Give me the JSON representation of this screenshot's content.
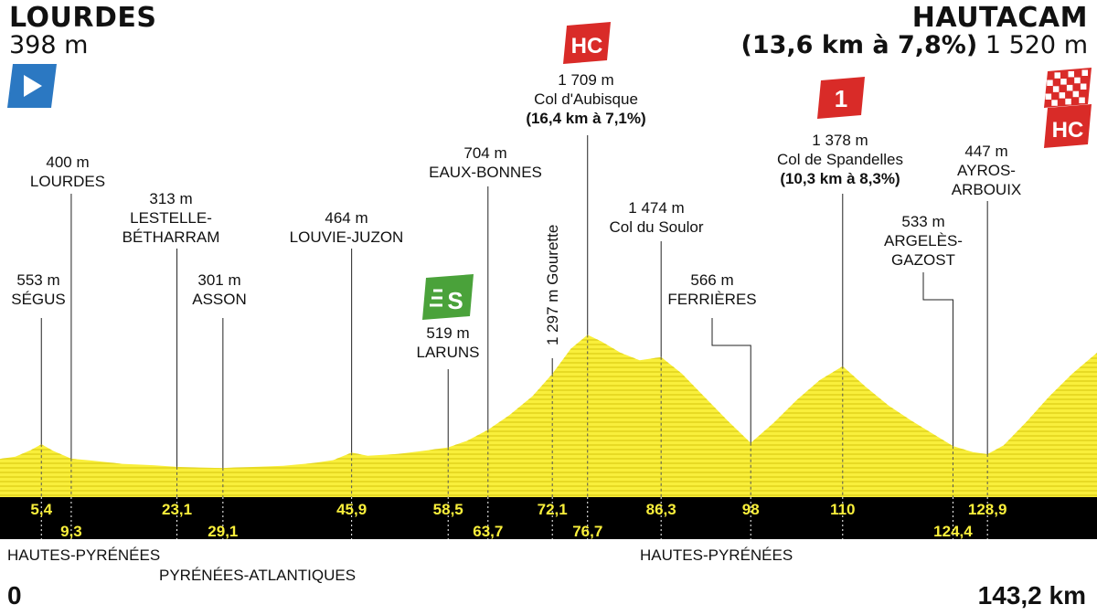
{
  "header": {
    "start_city": "LOURDES",
    "start_alt": "398 m",
    "finish_city": "HAUTACAM",
    "finish_climb": "(13,6 km à 7,8%)",
    "finish_alt": "1 520 m"
  },
  "footer": {
    "start_km": "0",
    "end_km": "143,2 km",
    "departments": [
      "HAUTES-PYRÉNÉES",
      "PYRÉNÉES-ATLANTIQUES",
      "HAUTES-PYRÉNÉES"
    ]
  },
  "colors": {
    "profile_fill": "#f9ef3b",
    "profile_lines": "#c9b800",
    "distance_band": "#000000",
    "hc_badge": "#d92b28",
    "cat1_badge": "#d92b28",
    "sprint_badge": "#4aa23a",
    "start_flag": "#2b78c2"
  },
  "badges": {
    "aubisque": "HC",
    "spandelles": "1",
    "sprint": "S",
    "finish": "HC"
  },
  "chart_data": {
    "type": "area",
    "xlabel": "",
    "ylabel": "",
    "xlim": [
      0,
      143.2
    ],
    "ylim": [
      0,
      1800
    ],
    "profile": [
      [
        0,
        398
      ],
      [
        2,
        420
      ],
      [
        4,
        490
      ],
      [
        5.4,
        553
      ],
      [
        7,
        480
      ],
      [
        9.3,
        400
      ],
      [
        12,
        380
      ],
      [
        16,
        345
      ],
      [
        20,
        330
      ],
      [
        23.1,
        313
      ],
      [
        26,
        305
      ],
      [
        29.1,
        301
      ],
      [
        33,
        312
      ],
      [
        37,
        325
      ],
      [
        41,
        355
      ],
      [
        43.5,
        385
      ],
      [
        45.9,
        464
      ],
      [
        48,
        430
      ],
      [
        52,
        450
      ],
      [
        55,
        480
      ],
      [
        58.5,
        519
      ],
      [
        61,
        590
      ],
      [
        63.7,
        704
      ],
      [
        66.5,
        860
      ],
      [
        69.5,
        1060
      ],
      [
        72.1,
        1297
      ],
      [
        74.5,
        1560
      ],
      [
        76.7,
        1709
      ],
      [
        78.5,
        1640
      ],
      [
        81,
        1520
      ],
      [
        83.5,
        1440
      ],
      [
        86.3,
        1474
      ],
      [
        89,
        1300
      ],
      [
        92,
        1050
      ],
      [
        95,
        800
      ],
      [
        98,
        566
      ],
      [
        101,
        780
      ],
      [
        104,
        1020
      ],
      [
        107,
        1230
      ],
      [
        110,
        1378
      ],
      [
        113,
        1160
      ],
      [
        116,
        960
      ],
      [
        119,
        800
      ],
      [
        121,
        700
      ],
      [
        124.4,
        533
      ],
      [
        127,
        470
      ],
      [
        128.9,
        447
      ],
      [
        131,
        540
      ],
      [
        134,
        790
      ],
      [
        137,
        1060
      ],
      [
        140,
        1300
      ],
      [
        143.2,
        1520
      ]
    ],
    "waypoints": [
      {
        "km": 5.4,
        "km_label": "5,4",
        "alt": "553 m",
        "name": "SÉGUS"
      },
      {
        "km": 9.3,
        "km_label": "9,3",
        "alt": "400 m",
        "name": "LOURDES"
      },
      {
        "km": 23.1,
        "km_label": "23,1",
        "alt": "313 m",
        "name": "LESTELLE-",
        "name2": "BÉTHARRAM"
      },
      {
        "km": 29.1,
        "km_label": "29,1",
        "alt": "301 m",
        "name": "ASSON"
      },
      {
        "km": 45.9,
        "km_label": "45,9",
        "alt": "464 m",
        "name": "LOUVIE-JUZON"
      },
      {
        "km": 58.5,
        "km_label": "58,5",
        "alt": "519 m",
        "name": "LARUNS"
      },
      {
        "km": 63.7,
        "km_label": "63,7",
        "alt": "704 m",
        "name": "EAUX-BONNES"
      },
      {
        "km": 72.1,
        "km_label": "72,1",
        "alt": "1 297 m",
        "name": "Gourette"
      },
      {
        "km": 76.7,
        "km_label": "76,7",
        "alt": "1 709 m",
        "name": "Col d'Aubisque",
        "climb": "(16,4 km à 7,1%)"
      },
      {
        "km": 86.3,
        "km_label": "86,3",
        "alt": "1 474 m",
        "name": "Col du Soulor"
      },
      {
        "km": 98,
        "km_label": "98",
        "alt": "566 m",
        "name": "FERRIÈRES"
      },
      {
        "km": 110,
        "km_label": "110",
        "alt": "1 378 m",
        "name": "Col de Spandelles",
        "climb": "(10,3 km à 8,3%)"
      },
      {
        "km": 124.4,
        "km_label": "124,4",
        "alt": "533 m",
        "name": "ARGELÈS-",
        "name2": "GAZOST"
      },
      {
        "km": 128.9,
        "km_label": "128,9",
        "alt": "447 m",
        "name": "AYROS-",
        "name2": "ARBOUIX"
      }
    ]
  }
}
